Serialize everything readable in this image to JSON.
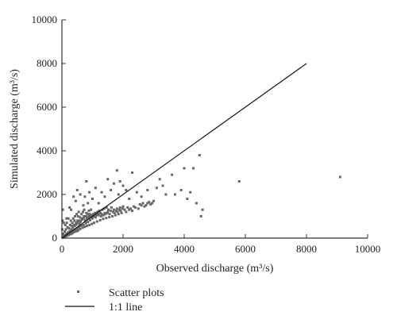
{
  "chart_data": {
    "type": "scatter",
    "title": "",
    "xlabel": "Observed discharge (m³/s)",
    "ylabel": "Simulated discharge (m³/s)",
    "xlim": [
      0,
      10000
    ],
    "ylim": [
      0,
      10000
    ],
    "x_ticks": [
      0,
      2000,
      4000,
      6000,
      8000,
      10000
    ],
    "y_ticks": [
      0,
      2000,
      4000,
      6000,
      8000,
      10000
    ],
    "grid": false,
    "legend_position": "bottom-left",
    "series": [
      {
        "name": "Scatter plots",
        "kind": "points",
        "color": "#666666",
        "points": [
          [
            20,
            20
          ],
          [
            35,
            50
          ],
          [
            50,
            30
          ],
          [
            60,
            90
          ],
          [
            80,
            60
          ],
          [
            100,
            120
          ],
          [
            120,
            80
          ],
          [
            140,
            150
          ],
          [
            150,
            200
          ],
          [
            170,
            110
          ],
          [
            190,
            180
          ],
          [
            200,
            260
          ],
          [
            220,
            140
          ],
          [
            240,
            220
          ],
          [
            260,
            320
          ],
          [
            280,
            180
          ],
          [
            300,
            250
          ],
          [
            310,
            400
          ],
          [
            330,
            210
          ],
          [
            350,
            300
          ],
          [
            360,
            480
          ],
          [
            380,
            260
          ],
          [
            400,
            350
          ],
          [
            420,
            560
          ],
          [
            440,
            300
          ],
          [
            450,
            400
          ],
          [
            470,
            620
          ],
          [
            490,
            320
          ],
          [
            500,
            450
          ],
          [
            520,
            700
          ],
          [
            540,
            360
          ],
          [
            560,
            500
          ],
          [
            580,
            800
          ],
          [
            600,
            420
          ],
          [
            620,
            560
          ],
          [
            650,
            900
          ],
          [
            680,
            480
          ],
          [
            700,
            600
          ],
          [
            720,
            1000
          ],
          [
            750,
            520
          ],
          [
            780,
            680
          ],
          [
            800,
            1150
          ],
          [
            820,
            560
          ],
          [
            850,
            740
          ],
          [
            880,
            1250
          ],
          [
            900,
            600
          ],
          [
            920,
            820
          ],
          [
            950,
            1300
          ],
          [
            980,
            650
          ],
          [
            1000,
            900
          ],
          [
            1050,
            700
          ],
          [
            1100,
            950
          ],
          [
            1150,
            760
          ],
          [
            1200,
            1050
          ],
          [
            1250,
            820
          ],
          [
            1300,
            1100
          ],
          [
            1350,
            880
          ],
          [
            1400,
            1150
          ],
          [
            1450,
            920
          ],
          [
            1500,
            1200
          ],
          [
            1550,
            960
          ],
          [
            1600,
            1250
          ],
          [
            1650,
            1000
          ],
          [
            1700,
            1300
          ],
          [
            1750,
            1050
          ],
          [
            1800,
            1350
          ],
          [
            1850,
            1100
          ],
          [
            1900,
            1400
          ],
          [
            1950,
            1150
          ],
          [
            2000,
            1450
          ],
          [
            2100,
            1200
          ],
          [
            2200,
            1300
          ],
          [
            2300,
            1250
          ],
          [
            2400,
            1400
          ],
          [
            2500,
            1350
          ],
          [
            2600,
            1500
          ],
          [
            2700,
            1450
          ],
          [
            2800,
            1600
          ],
          [
            2900,
            1550
          ],
          [
            3000,
            1700
          ],
          [
            150,
            900
          ],
          [
            250,
            1400
          ],
          [
            300,
            1300
          ],
          [
            380,
            1900
          ],
          [
            450,
            1700
          ],
          [
            500,
            2200
          ],
          [
            550,
            1200
          ],
          [
            600,
            2000
          ],
          [
            700,
            1500
          ],
          [
            750,
            1900
          ],
          [
            800,
            2600
          ],
          [
            850,
            1600
          ],
          [
            900,
            2100
          ],
          [
            1000,
            1800
          ],
          [
            1100,
            2300
          ],
          [
            1200,
            1600
          ],
          [
            1300,
            2100
          ],
          [
            1400,
            1900
          ],
          [
            1500,
            2700
          ],
          [
            1600,
            2200
          ],
          [
            1700,
            2500
          ],
          [
            1800,
            3100
          ],
          [
            1850,
            2000
          ],
          [
            1900,
            2600
          ],
          [
            2000,
            2400
          ],
          [
            2100,
            2200
          ],
          [
            2200,
            1800
          ],
          [
            2300,
            3000
          ],
          [
            2450,
            2100
          ],
          [
            2600,
            1900
          ],
          [
            2800,
            2200
          ],
          [
            3100,
            2300
          ],
          [
            3200,
            2700
          ],
          [
            3300,
            2400
          ],
          [
            3400,
            2000
          ],
          [
            3600,
            2900
          ],
          [
            3700,
            2000
          ],
          [
            3900,
            2200
          ],
          [
            4000,
            3200
          ],
          [
            4100,
            1800
          ],
          [
            4200,
            2100
          ],
          [
            4300,
            3200
          ],
          [
            4400,
            1600
          ],
          [
            4500,
            3800
          ],
          [
            4550,
            1000
          ],
          [
            4600,
            1300
          ],
          [
            5800,
            2600
          ],
          [
            9100,
            2800
          ],
          [
            10,
            400
          ],
          [
            20,
            800
          ],
          [
            30,
            1300
          ],
          [
            40,
            200
          ],
          [
            60,
            700
          ],
          [
            90,
            300
          ],
          [
            110,
            600
          ],
          [
            130,
            400
          ],
          [
            160,
            700
          ],
          [
            180,
            500
          ],
          [
            210,
            900
          ],
          [
            230,
            450
          ],
          [
            270,
            600
          ],
          [
            290,
            800
          ],
          [
            320,
            550
          ],
          [
            340,
            700
          ],
          [
            370,
            900
          ],
          [
            390,
            600
          ],
          [
            410,
            800
          ],
          [
            430,
            1000
          ],
          [
            460,
            700
          ],
          [
            480,
            1100
          ],
          [
            510,
            800
          ],
          [
            530,
            1000
          ],
          [
            570,
            650
          ],
          [
            590,
            950
          ],
          [
            610,
            750
          ],
          [
            640,
            1100
          ],
          [
            660,
            850
          ],
          [
            690,
            1200
          ],
          [
            710,
            900
          ],
          [
            730,
            1300
          ],
          [
            760,
            800
          ],
          [
            790,
            1000
          ],
          [
            810,
            900
          ],
          [
            840,
            1100
          ],
          [
            860,
            950
          ],
          [
            890,
            1000
          ],
          [
            910,
            1100
          ],
          [
            940,
            950
          ],
          [
            960,
            1050
          ],
          [
            990,
            1000
          ],
          [
            1020,
            1100
          ],
          [
            1060,
            1000
          ],
          [
            1080,
            1150
          ],
          [
            1120,
            1050
          ],
          [
            1160,
            1200
          ],
          [
            1180,
            1100
          ],
          [
            1220,
            1250
          ],
          [
            1260,
            1150
          ],
          [
            1280,
            1000
          ],
          [
            1320,
            1300
          ],
          [
            1360,
            1050
          ],
          [
            1380,
            1350
          ],
          [
            1420,
            1100
          ],
          [
            1460,
            1400
          ],
          [
            1480,
            1150
          ],
          [
            1520,
            1300
          ],
          [
            1560,
            1100
          ],
          [
            1620,
            1400
          ],
          [
            1680,
            1200
          ],
          [
            1720,
            1150
          ],
          [
            1780,
            1250
          ],
          [
            1820,
            1200
          ],
          [
            1880,
            1300
          ],
          [
            1920,
            1250
          ],
          [
            1980,
            1350
          ],
          [
            2050,
            1300
          ],
          [
            2150,
            1400
          ],
          [
            2250,
            1350
          ],
          [
            2350,
            1450
          ],
          [
            2550,
            1550
          ],
          [
            2650,
            1600
          ],
          [
            2750,
            1500
          ],
          [
            2850,
            1650
          ],
          [
            2950,
            1600
          ]
        ]
      },
      {
        "name": "1:1 line",
        "kind": "line",
        "color": "#111111",
        "points": [
          [
            0,
            0
          ],
          [
            8000,
            8000
          ]
        ]
      }
    ]
  }
}
